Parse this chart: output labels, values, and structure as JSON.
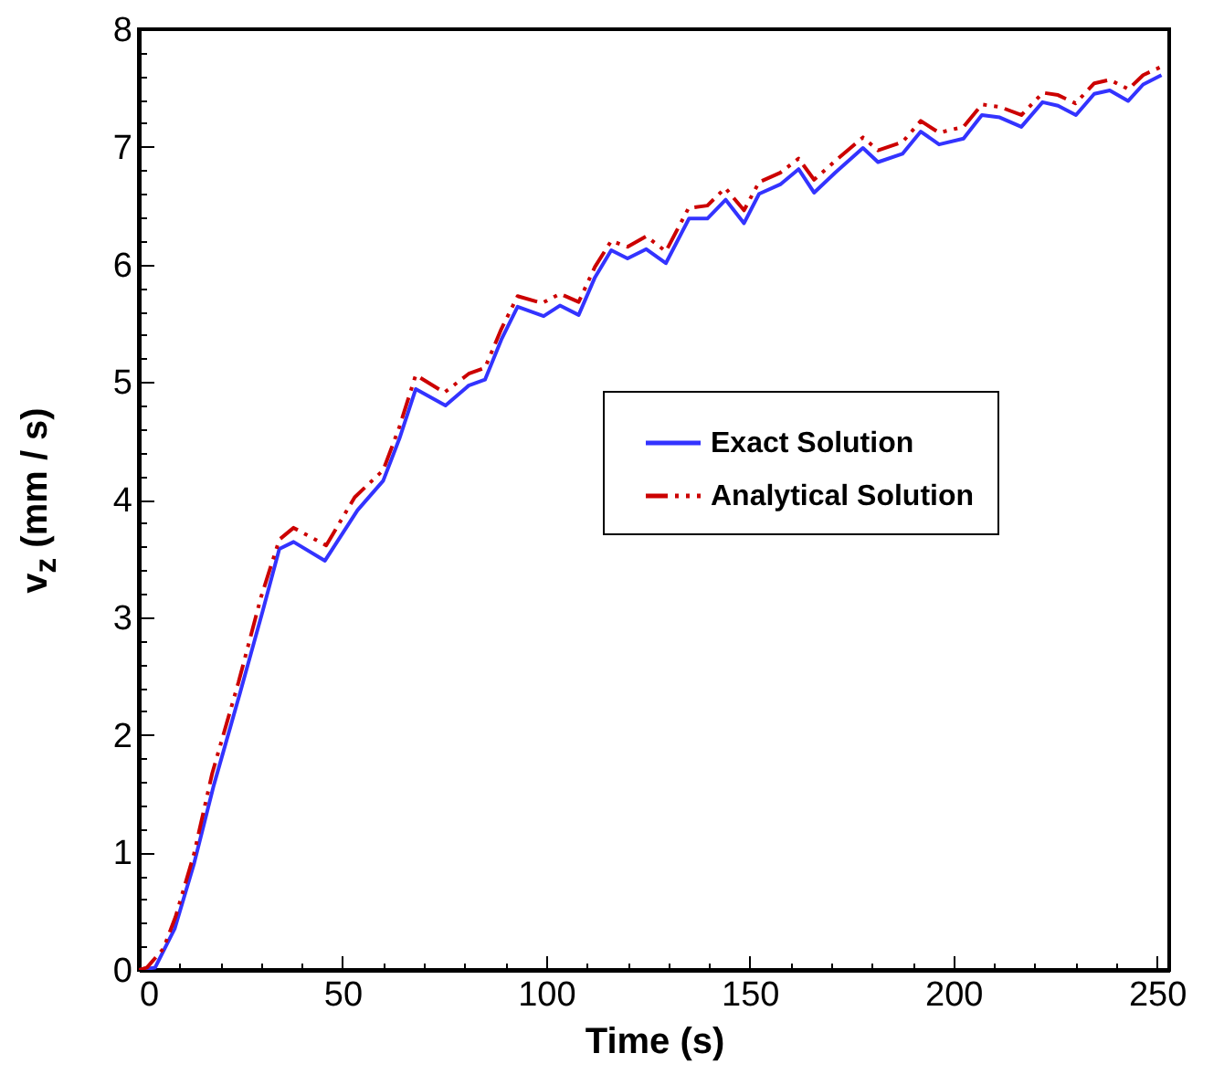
{
  "chart_data": {
    "type": "line",
    "xlabel": "Time (s)",
    "ylabel": "v$_{z}$ (mm / s)",
    "legend": "right",
    "grid": false,
    "xlim": [
      0,
      253
    ],
    "ylim": [
      0,
      8
    ],
    "xticks": [
      0,
      {
        "value": 10,
        "label": null
      },
      {
        "value": 20,
        "label": null
      },
      {
        "value": 30,
        "label": null
      },
      {
        "value": 40,
        "label": null
      },
      50,
      {
        "value": 60,
        "label": null
      },
      {
        "value": 70,
        "label": null
      },
      {
        "value": 80,
        "label": null
      },
      {
        "value": 90,
        "label": null
      },
      100,
      {
        "value": 110,
        "label": null
      },
      {
        "value": 120,
        "label": null
      },
      {
        "value": 130,
        "label": null
      },
      {
        "value": 140,
        "label": null
      },
      150,
      {
        "value": 160,
        "label": null
      },
      {
        "value": 170,
        "label": null
      },
      {
        "value": 180,
        "label": null
      },
      {
        "value": 190,
        "label": null
      },
      200,
      {
        "value": 210,
        "label": null
      },
      {
        "value": 220,
        "label": null
      },
      {
        "value": 230,
        "label": null
      },
      {
        "value": 240,
        "label": null
      },
      250
    ],
    "yticks": [
      0,
      {
        "value": 0.2,
        "label": null
      },
      {
        "value": 0.4,
        "label": null
      },
      {
        "value": 0.6,
        "label": null
      },
      {
        "value": 0.8,
        "label": null
      },
      1,
      {
        "value": 1.2,
        "label": null
      },
      {
        "value": 1.4,
        "label": null
      },
      {
        "value": 1.6,
        "label": null
      },
      {
        "value": 1.8,
        "label": null
      },
      2,
      {
        "value": 2.2,
        "label": null
      },
      {
        "value": 2.4,
        "label": null
      },
      {
        "value": 2.6,
        "label": null
      },
      {
        "value": 2.8,
        "label": null
      },
      3,
      {
        "value": 3.2,
        "label": null
      },
      {
        "value": 3.4,
        "label": null
      },
      {
        "value": 3.6,
        "label": null
      },
      {
        "value": 3.8,
        "label": null
      },
      4,
      {
        "value": 4.2,
        "label": null
      },
      {
        "value": 4.4,
        "label": null
      },
      {
        "value": 4.6,
        "label": null
      },
      {
        "value": 4.8,
        "label": null
      },
      5,
      {
        "value": 5.2,
        "label": null
      },
      {
        "value": 5.4,
        "label": null
      },
      {
        "value": 5.6,
        "label": null
      },
      {
        "value": 5.8,
        "label": null
      },
      6,
      {
        "value": 6.2,
        "label": null
      },
      {
        "value": 6.4,
        "label": null
      },
      {
        "value": 6.6,
        "label": null
      },
      {
        "value": 6.8,
        "label": null
      },
      7,
      {
        "value": 7.2,
        "label": null
      },
      {
        "value": 7.4,
        "label": null
      },
      {
        "value": 7.6,
        "label": null
      },
      {
        "value": 7.8,
        "label": null
      },
      8
    ],
    "series": [
      {
        "name": "Exact Solution",
        "color": "#3333ff",
        "line_style": "solid",
        "x": [
          0,
          4,
          8.8,
          13.6,
          18.4,
          24.8,
          30.4,
          34.5,
          38,
          45.7,
          53.7,
          60,
          64,
          68,
          75.3,
          81,
          85,
          89,
          93,
          99.4,
          103.4,
          108,
          112,
          116,
          120,
          124.6,
          129.4,
          135.1,
          139.6,
          144.1,
          148.6,
          152.3,
          157.5,
          162,
          165.8,
          171,
          177.8,
          181.5,
          187.5,
          192,
          196.5,
          202.5,
          207,
          211.4,
          216.7,
          221.9,
          225.7,
          230.1,
          234.6,
          238.4,
          242.9,
          246.6,
          251.1
        ],
        "values": [
          0,
          0.02,
          0.35,
          0.91,
          1.57,
          2.35,
          3.05,
          3.58,
          3.64,
          3.48,
          3.91,
          4.16,
          4.52,
          4.94,
          4.8,
          4.97,
          5.02,
          5.36,
          5.64,
          5.56,
          5.65,
          5.57,
          5.89,
          6.12,
          6.05,
          6.13,
          6.01,
          6.39,
          6.39,
          6.55,
          6.35,
          6.6,
          6.68,
          6.81,
          6.61,
          6.78,
          6.99,
          6.87,
          6.94,
          7.13,
          7.02,
          7.07,
          7.27,
          7.25,
          7.17,
          7.38,
          7.35,
          7.27,
          7.45,
          7.48,
          7.39,
          7.53,
          7.61
        ]
      },
      {
        "name": "Analytical Solution",
        "color": "#cc0000",
        "line_style": "dashed",
        "x": [
          0,
          2,
          6,
          9,
          13.5,
          18,
          24.5,
          30,
          34.5,
          38,
          46,
          53,
          60,
          64,
          68,
          75,
          81,
          85,
          89,
          93,
          99,
          103.4,
          108,
          112,
          116,
          120,
          124.6,
          129.4,
          135,
          139.6,
          144,
          148.6,
          152.3,
          157.5,
          162,
          165.8,
          171,
          177.8,
          181.5,
          187.5,
          192,
          196.5,
          202.5,
          207,
          211.4,
          216.7,
          222,
          225.7,
          230,
          234.6,
          238.4,
          243,
          246.6,
          251
        ],
        "values": [
          0,
          0.02,
          0.18,
          0.45,
          0.98,
          1.67,
          2.45,
          3.17,
          3.66,
          3.76,
          3.61,
          4.02,
          4.25,
          4.62,
          5.06,
          4.91,
          5.07,
          5.12,
          5.45,
          5.73,
          5.67,
          5.75,
          5.68,
          5.98,
          6.2,
          6.15,
          6.24,
          6.11,
          6.48,
          6.5,
          6.65,
          6.46,
          6.7,
          6.78,
          6.9,
          6.72,
          6.88,
          7.08,
          6.97,
          7.04,
          7.22,
          7.12,
          7.17,
          7.36,
          7.34,
          7.27,
          7.46,
          7.44,
          7.37,
          7.54,
          7.57,
          7.49,
          7.61,
          7.68
        ]
      }
    ]
  }
}
